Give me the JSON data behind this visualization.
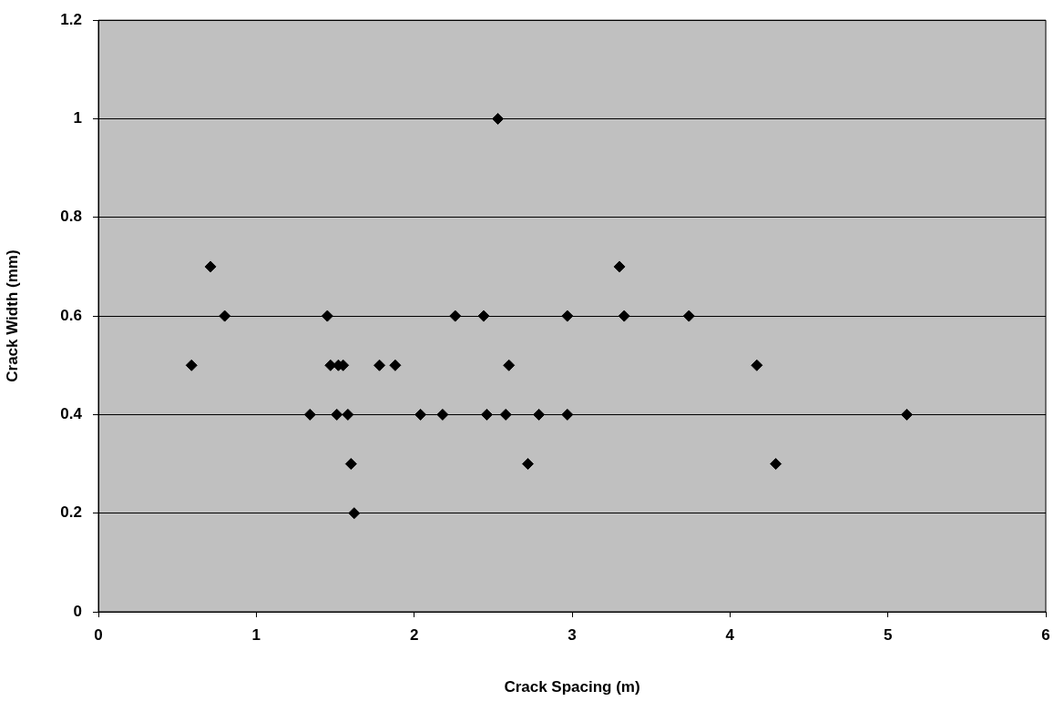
{
  "chart_data": {
    "type": "scatter",
    "xlabel": "Crack Spacing (m)",
    "ylabel": "Crack Width (mm)",
    "xlim": [
      0,
      6
    ],
    "xticks": [
      0,
      1,
      2,
      3,
      4,
      5,
      6
    ],
    "ylim": [
      0,
      1.2
    ],
    "yticks": [
      0,
      0.2,
      0.4,
      0.6,
      0.8,
      1,
      1.2
    ],
    "grid": "y",
    "marker": "diamond",
    "legend": false,
    "series": [
      {
        "color": "#000000",
        "x": [
          0.59,
          0.71,
          0.8,
          1.34,
          1.45,
          1.47,
          1.51,
          1.52,
          1.55,
          1.58,
          1.6,
          1.62,
          1.78,
          1.88,
          2.04,
          2.18,
          2.26,
          2.44,
          2.46,
          2.53,
          2.58,
          2.6,
          2.72,
          2.79,
          2.97,
          2.97,
          3.3,
          3.33,
          3.74,
          4.17,
          4.29,
          5.12
        ],
        "values": [
          0.5,
          0.7,
          0.6,
          0.4,
          0.6,
          0.5,
          0.4,
          0.5,
          0.5,
          0.4,
          0.3,
          0.2,
          0.5,
          0.5,
          0.4,
          0.4,
          0.6,
          0.6,
          0.4,
          1.0,
          0.4,
          0.5,
          0.3,
          0.4,
          0.4,
          0.6,
          0.7,
          0.6,
          0.6,
          0.5,
          0.3,
          0.4
        ]
      }
    ]
  }
}
